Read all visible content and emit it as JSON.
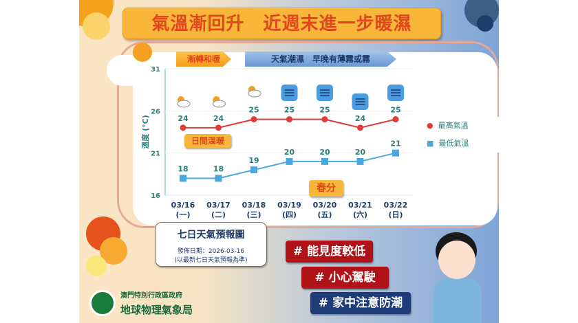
{
  "title": "氣溫漸回升　近週末進一步暖濕",
  "banners": {
    "left": "漸轉和暖",
    "right": "天氣潮濕　早晚有薄霧或霧"
  },
  "annotations": {
    "daytime": "日間溫暖",
    "equinox": "春分"
  },
  "info": {
    "heading": "七日天氣預報圖",
    "issue_date": "發佈日期：2026-03-16",
    "note": "(以最新七日天氣預報為準)"
  },
  "hashtags": [
    "# 能見度較低",
    "# 小心駕駛",
    "# 家中注意防潮"
  ],
  "org": {
    "gov": "澳門特別行政區政府",
    "bureau": "地球物理氣象局"
  },
  "colors": {
    "high": "#e03a3a",
    "low": "#4aa8de",
    "title_bg": "#f8b73a",
    "title_text": "#e0471c",
    "tag_red": "#b01218",
    "tag_blue": "#1e3c7a"
  },
  "chart_data": {
    "type": "line",
    "ylabel": "溫度 (°C)",
    "ylim": [
      16,
      31
    ],
    "yticks": [
      16,
      21,
      26,
      31
    ],
    "categories": [
      "03/16",
      "03/17",
      "03/18",
      "03/19",
      "03/20",
      "03/21",
      "03/22"
    ],
    "weekdays": [
      "(一)",
      "(二)",
      "(三)",
      "(四)",
      "(五)",
      "(六)",
      "(日)"
    ],
    "weather_icons": [
      "partly-cloudy-icon",
      "partly-cloudy-icon",
      "partly-cloudy-drizzle-icon",
      "fog-icon",
      "fog-icon",
      "fog-icon",
      "fog-icon"
    ],
    "legend_position": "right",
    "series": [
      {
        "name": "最高氣溫",
        "values": [
          24,
          24,
          25,
          25,
          25,
          24,
          25
        ],
        "marker": "circle"
      },
      {
        "name": "最低氣溫",
        "values": [
          18,
          18,
          19,
          20,
          20,
          20,
          21
        ],
        "marker": "square"
      }
    ]
  }
}
